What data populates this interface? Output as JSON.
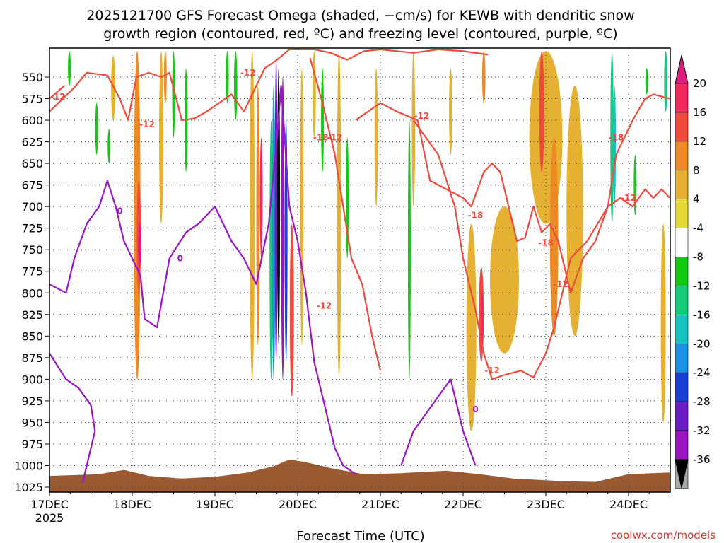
{
  "chart_data": {
    "type": "heatmap",
    "title_line1": "2025121700 GFS Forecast Omega (shaded, −cm/s) for KEWB with dendritic snow",
    "title_line2": "growth region (contoured, red, ºC) and freezing level (contoured, purple, ºC)",
    "xlabel": "Forecast Time (UTC)",
    "credit": "coolwx.com/models",
    "start_label_day": "17DEC",
    "start_label_year": "2025",
    "x_ticks": [
      {
        "label": "17DEC",
        "day": 0
      },
      {
        "label": "18DEC",
        "day": 1
      },
      {
        "label": "19DEC",
        "day": 2
      },
      {
        "label": "20DEC",
        "day": 3
      },
      {
        "label": "21DEC",
        "day": 4
      },
      {
        "label": "22DEC",
        "day": 5
      },
      {
        "label": "23DEC",
        "day": 6
      },
      {
        "label": "24DEC",
        "day": 7
      }
    ],
    "xlim_days": [
      0,
      7.5
    ],
    "y_ticks": [
      550,
      575,
      600,
      625,
      650,
      675,
      700,
      725,
      750,
      775,
      800,
      825,
      850,
      875,
      900,
      925,
      950,
      975,
      1000,
      1025
    ],
    "ylim_hpa": [
      518,
      1036
    ],
    "colorbar": {
      "unit": "-cm/s",
      "labels": [
        "20",
        "16",
        "12",
        "8",
        "4",
        "-4",
        "-8",
        "-12",
        "-16",
        "-20",
        "-24",
        "-28",
        "-32",
        "-36"
      ],
      "colors": [
        "#f2285f",
        "#f04a3c",
        "#ee8a25",
        "#e6b032",
        "#e5d83a",
        "#ffffff",
        "#13c913",
        "#17c97a",
        "#17c2c2",
        "#1a93e6",
        "#1a3fd6",
        "#6a1cc6",
        "#9a14c2",
        "#a8a8a8"
      ],
      "top_color": "#e01a80",
      "bottom_color": "#000000"
    },
    "omega_streaks": [
      {
        "day": 0.24,
        "w": 0.03,
        "p1": 520,
        "p2": 560,
        "val": -6
      },
      {
        "day": 0.57,
        "w": 0.03,
        "p1": 580,
        "p2": 640,
        "val": -6
      },
      {
        "day": 0.77,
        "w": 0.05,
        "p1": 525,
        "p2": 600,
        "val": 5
      },
      {
        "day": 0.72,
        "w": 0.02,
        "p1": 610,
        "p2": 650,
        "val": -6
      },
      {
        "day": 1.06,
        "w": 0.08,
        "p1": 520,
        "p2": 900,
        "val": 8
      },
      {
        "day": 1.08,
        "w": 0.05,
        "p1": 670,
        "p2": 800,
        "val": 14
      },
      {
        "day": 1.09,
        "w": 0.03,
        "p1": 720,
        "p2": 770,
        "val": 20
      },
      {
        "day": 1.35,
        "w": 0.05,
        "p1": 520,
        "p2": 720,
        "val": 5
      },
      {
        "day": 1.4,
        "w": 0.03,
        "p1": 520,
        "p2": 580,
        "val": 10
      },
      {
        "day": 1.5,
        "w": 0.03,
        "p1": 520,
        "p2": 620,
        "val": -6
      },
      {
        "day": 1.65,
        "w": 0.02,
        "p1": 540,
        "p2": 660,
        "val": -6
      },
      {
        "day": 2.15,
        "w": 0.03,
        "p1": 520,
        "p2": 580,
        "val": -6
      },
      {
        "day": 2.25,
        "w": 0.04,
        "p1": 520,
        "p2": 600,
        "val": -6
      },
      {
        "day": 2.45,
        "w": 0.06,
        "p1": 520,
        "p2": 900,
        "val": 5
      },
      {
        "day": 2.52,
        "w": 0.04,
        "p1": 560,
        "p2": 860,
        "val": 10
      },
      {
        "day": 2.56,
        "w": 0.02,
        "p1": 620,
        "p2": 760,
        "val": 16
      },
      {
        "day": 2.68,
        "w": 0.04,
        "p1": 600,
        "p2": 900,
        "val": -10
      },
      {
        "day": 2.71,
        "w": 0.04,
        "p1": 560,
        "p2": 900,
        "val": -16
      },
      {
        "day": 2.74,
        "w": 0.035,
        "p1": 530,
        "p2": 880,
        "val": -26
      },
      {
        "day": 2.77,
        "w": 0.03,
        "p1": 540,
        "p2": 860,
        "val": -40
      },
      {
        "day": 2.82,
        "w": 0.04,
        "p1": 550,
        "p2": 900,
        "val": -30
      },
      {
        "day": 2.86,
        "w": 0.025,
        "p1": 600,
        "p2": 880,
        "val": -22
      },
      {
        "day": 2.93,
        "w": 0.05,
        "p1": 720,
        "p2": 920,
        "val": 12
      },
      {
        "day": 3.05,
        "w": 0.04,
        "p1": 540,
        "p2": 860,
        "val": 5
      },
      {
        "day": 3.2,
        "w": 0.04,
        "p1": 520,
        "p2": 620,
        "val": 5
      },
      {
        "day": 3.3,
        "w": 0.03,
        "p1": 540,
        "p2": 660,
        "val": -6
      },
      {
        "day": 3.5,
        "w": 0.05,
        "p1": 520,
        "p2": 900,
        "val": 5
      },
      {
        "day": 3.6,
        "w": 0.02,
        "p1": 620,
        "p2": 760,
        "val": -6
      },
      {
        "day": 3.95,
        "w": 0.04,
        "p1": 540,
        "p2": 700,
        "val": 5
      },
      {
        "day": 4.35,
        "w": 0.03,
        "p1": 600,
        "p2": 900,
        "val": -6
      },
      {
        "day": 4.4,
        "w": 0.04,
        "p1": 520,
        "p2": 700,
        "val": 5
      },
      {
        "day": 4.85,
        "w": 0.04,
        "p1": 540,
        "p2": 640,
        "val": 5
      },
      {
        "day": 5.1,
        "w": 0.12,
        "p1": 720,
        "p2": 960,
        "val": 5
      },
      {
        "day": 5.22,
        "w": 0.06,
        "p1": 770,
        "p2": 880,
        "val": 12
      },
      {
        "day": 5.23,
        "w": 0.03,
        "p1": 800,
        "p2": 860,
        "val": 17
      },
      {
        "day": 5.25,
        "w": 0.04,
        "p1": 520,
        "p2": 580,
        "val": 8
      },
      {
        "day": 5.5,
        "w": 0.35,
        "p1": 700,
        "p2": 870,
        "val": 5
      },
      {
        "day": 6.0,
        "w": 0.4,
        "p1": 520,
        "p2": 720,
        "val": 5
      },
      {
        "day": 5.95,
        "w": 0.06,
        "p1": 520,
        "p2": 660,
        "val": 14
      },
      {
        "day": 6.1,
        "w": 0.1,
        "p1": 620,
        "p2": 850,
        "val": 8
      },
      {
        "day": 6.35,
        "w": 0.2,
        "p1": 560,
        "p2": 850,
        "val": 5
      },
      {
        "day": 6.8,
        "w": 0.04,
        "p1": 520,
        "p2": 720,
        "val": -8
      },
      {
        "day": 6.83,
        "w": 0.02,
        "p1": 560,
        "p2": 700,
        "val": -12
      },
      {
        "day": 7.08,
        "w": 0.03,
        "p1": 640,
        "p2": 710,
        "val": -6
      },
      {
        "day": 7.22,
        "w": 0.03,
        "p1": 540,
        "p2": 570,
        "val": -6
      },
      {
        "day": 7.45,
        "w": 0.04,
        "p1": 520,
        "p2": 590,
        "val": -10
      },
      {
        "day": 7.42,
        "w": 0.06,
        "p1": 720,
        "p2": 950,
        "val": 5
      }
    ],
    "dgz_upper": [
      [
        0,
        590
      ],
      [
        0.3,
        562
      ],
      [
        0.45,
        545
      ],
      [
        0.7,
        548
      ],
      [
        0.85,
        575
      ],
      [
        0.95,
        600
      ],
      [
        1.05,
        550
      ],
      [
        1.2,
        545
      ],
      [
        1.35,
        550
      ],
      [
        1.45,
        545
      ],
      [
        1.6,
        600
      ],
      [
        1.75,
        598
      ],
      [
        1.9,
        590
      ],
      [
        2.05,
        580
      ],
      [
        2.2,
        570
      ],
      [
        2.35,
        590
      ],
      [
        2.5,
        560
      ],
      [
        2.6,
        540
      ],
      [
        2.75,
        530
      ],
      [
        2.9,
        518
      ],
      [
        3.2,
        518
      ],
      [
        3.4,
        522
      ],
      [
        3.6,
        530
      ],
      [
        3.8,
        520
      ],
      [
        4.0,
        518
      ],
      [
        4.4,
        522
      ],
      [
        4.7,
        518
      ],
      [
        5.0,
        520
      ],
      [
        5.3,
        524
      ]
    ],
    "dgz_right": [
      [
        3.15,
        528
      ],
      [
        3.3,
        580
      ],
      [
        3.45,
        640
      ],
      [
        3.55,
        700
      ],
      [
        3.65,
        760
      ],
      [
        3.78,
        790
      ],
      [
        3.9,
        850
      ],
      [
        4.0,
        890
      ]
    ],
    "dgz_left2": [
      [
        0.0,
        575
      ],
      [
        0.18,
        560
      ]
    ],
    "dgz_ring": [
      [
        3.7,
        600
      ],
      [
        4.0,
        580
      ],
      [
        4.2,
        590
      ],
      [
        4.45,
        600
      ],
      [
        4.6,
        670
      ],
      [
        4.8,
        680
      ],
      [
        5.0,
        690
      ],
      [
        5.1,
        700
      ],
      [
        5.25,
        660
      ],
      [
        5.35,
        650
      ],
      [
        5.45,
        660
      ],
      [
        5.65,
        740
      ],
      [
        5.75,
        736
      ],
      [
        5.85,
        700
      ],
      [
        5.95,
        730
      ],
      [
        6.05,
        720
      ],
      [
        6.15,
        740
      ],
      [
        6.3,
        800
      ],
      [
        6.45,
        760
      ],
      [
        6.6,
        740
      ],
      [
        6.75,
        700
      ],
      [
        6.85,
        640
      ],
      [
        6.95,
        620
      ],
      [
        7.05,
        600
      ],
      [
        7.2,
        575
      ],
      [
        7.3,
        570
      ],
      [
        7.5,
        575
      ]
    ],
    "dgz_low_left": [
      [
        4.4,
        600
      ],
      [
        4.7,
        640
      ],
      [
        4.9,
        700
      ],
      [
        5.0,
        760
      ],
      [
        5.15,
        820
      ],
      [
        5.25,
        870
      ],
      [
        5.35,
        900
      ],
      [
        5.5,
        895
      ],
      [
        5.7,
        890
      ],
      [
        5.85,
        898
      ],
      [
        6.0,
        870
      ],
      [
        6.1,
        840
      ],
      [
        6.3,
        760
      ],
      [
        6.5,
        740
      ],
      [
        6.75,
        700
      ],
      [
        6.9,
        690
      ],
      [
        7.05,
        700
      ],
      [
        7.2,
        680
      ],
      [
        7.3,
        690
      ],
      [
        7.4,
        680
      ],
      [
        7.5,
        690
      ]
    ],
    "freezing_line": [
      [
        0.0,
        790
      ],
      [
        0.2,
        800
      ],
      [
        0.3,
        760
      ],
      [
        0.45,
        720
      ],
      [
        0.6,
        700
      ],
      [
        0.7,
        670
      ],
      [
        0.8,
        700
      ],
      [
        0.9,
        740
      ],
      [
        1.0,
        760
      ],
      [
        1.1,
        780
      ],
      [
        1.15,
        830
      ],
      [
        1.3,
        840
      ],
      [
        1.45,
        760
      ],
      [
        1.65,
        730
      ],
      [
        1.8,
        720
      ],
      [
        2.0,
        700
      ],
      [
        2.1,
        720
      ],
      [
        2.2,
        740
      ],
      [
        2.35,
        760
      ],
      [
        2.5,
        790
      ],
      [
        2.65,
        720
      ],
      [
        2.75,
        620
      ],
      [
        2.8,
        560
      ],
      [
        2.9,
        700
      ],
      [
        3.0,
        740
      ],
      [
        3.1,
        800
      ],
      [
        3.2,
        880
      ],
      [
        3.3,
        920
      ],
      [
        3.45,
        980
      ],
      [
        3.55,
        1000
      ],
      [
        3.7,
        1010
      ]
    ],
    "freezing_low": [
      [
        0.0,
        870
      ],
      [
        0.2,
        900
      ],
      [
        0.35,
        910
      ],
      [
        0.5,
        930
      ],
      [
        0.55,
        960
      ],
      [
        0.45,
        1000
      ],
      [
        0.4,
        1020
      ]
    ],
    "freezing_low2": [
      [
        4.25,
        1000
      ],
      [
        4.4,
        960
      ],
      [
        4.55,
        940
      ],
      [
        4.7,
        920
      ],
      [
        4.85,
        900
      ],
      [
        5.0,
        960
      ],
      [
        5.15,
        1000
      ]
    ],
    "labels_red": [
      {
        "text": "-12",
        "day": 0.1,
        "hpa": 573
      },
      {
        "text": "-12",
        "day": 1.18,
        "hpa": 605
      },
      {
        "text": "-12",
        "day": 2.4,
        "hpa": 545
      },
      {
        "text": "-18",
        "day": 3.28,
        "hpa": 620
      },
      {
        "text": "-12",
        "day": 3.45,
        "hpa": 620
      },
      {
        "text": "-12",
        "day": 4.5,
        "hpa": 595
      },
      {
        "text": "-18",
        "day": 5.15,
        "hpa": 710
      },
      {
        "text": "-18",
        "day": 6.0,
        "hpa": 742
      },
      {
        "text": "-12",
        "day": 6.18,
        "hpa": 790
      },
      {
        "text": "-12",
        "day": 7.0,
        "hpa": 690
      },
      {
        "text": "-18",
        "day": 6.85,
        "hpa": 620
      },
      {
        "text": "-12",
        "day": 3.32,
        "hpa": 815
      },
      {
        "text": "-12",
        "day": 5.35,
        "hpa": 890
      }
    ],
    "labels_purple": [
      {
        "text": "0",
        "day": 0.85,
        "hpa": 705
      },
      {
        "text": "0",
        "day": 1.58,
        "hpa": 760
      },
      {
        "text": "0",
        "day": 5.15,
        "hpa": 935
      }
    ],
    "terrain": [
      [
        0,
        1012
      ],
      [
        0.6,
        1010
      ],
      [
        0.9,
        1005
      ],
      [
        1.2,
        1012
      ],
      [
        1.6,
        1015
      ],
      [
        2.0,
        1013
      ],
      [
        2.4,
        1008
      ],
      [
        2.7,
        1001
      ],
      [
        2.9,
        993
      ],
      [
        3.1,
        996
      ],
      [
        3.4,
        1003
      ],
      [
        3.8,
        1010
      ],
      [
        4.2,
        1009
      ],
      [
        4.8,
        1006
      ],
      [
        5.2,
        1010
      ],
      [
        5.6,
        1015
      ],
      [
        6.2,
        1018
      ],
      [
        6.6,
        1019
      ],
      [
        7.0,
        1010
      ],
      [
        7.5,
        1008
      ]
    ],
    "terrain_color": "#9b5a32",
    "dgz_color": "#f04a3c",
    "freezing_color": "#9b14c8"
  }
}
